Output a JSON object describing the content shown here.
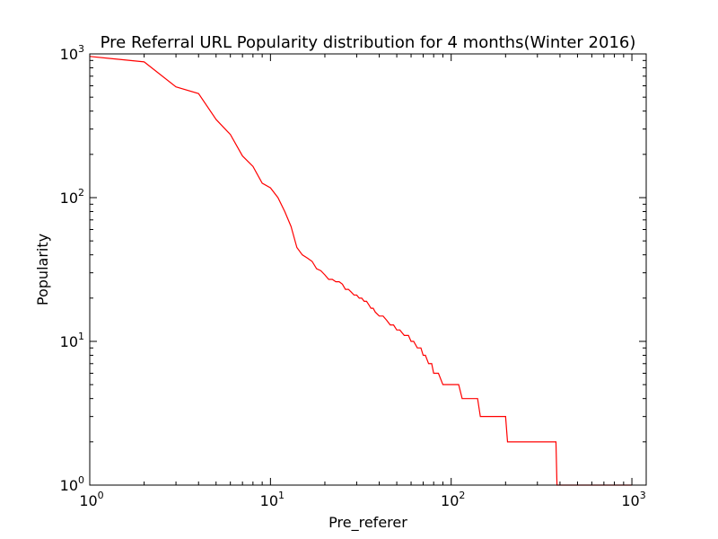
{
  "chart_data": {
    "type": "line",
    "title": "Pre Referral URL Popularity distribution for 4 months(Winter 2016)",
    "xlabel": "Pre_referer",
    "ylabel": "Popularity",
    "xscale": "log",
    "yscale": "log",
    "xlim": [
      1,
      1200
    ],
    "ylim": [
      1,
      1000
    ],
    "grid": false,
    "line_color": "#ff0000",
    "x_ticks": [
      {
        "value": 1,
        "base": "10",
        "exp": "0"
      },
      {
        "value": 10,
        "base": "10",
        "exp": "1"
      },
      {
        "value": 100,
        "base": "10",
        "exp": "2"
      },
      {
        "value": 1000,
        "base": "10",
        "exp": "3"
      }
    ],
    "y_ticks": [
      {
        "value": 1,
        "base": "10",
        "exp": "0"
      },
      {
        "value": 10,
        "base": "10",
        "exp": "1"
      },
      {
        "value": 100,
        "base": "10",
        "exp": "2"
      },
      {
        "value": 1000,
        "base": "10",
        "exp": "3"
      }
    ],
    "series": [
      {
        "x": [
          1,
          2,
          3,
          4,
          5,
          6,
          7,
          8,
          9,
          10,
          11,
          12,
          13,
          14,
          15,
          16,
          17,
          18,
          19,
          20,
          21,
          22,
          23,
          24,
          25,
          26,
          27,
          28,
          29,
          30,
          31,
          32,
          33,
          34,
          35,
          36,
          37,
          38,
          40,
          42,
          44,
          46,
          48,
          50,
          52,
          55,
          58,
          60,
          62,
          65,
          68,
          70,
          72,
          75,
          78,
          80,
          85,
          90,
          95,
          100,
          110,
          115,
          140,
          145,
          200,
          205,
          380,
          385,
          1000
        ],
        "y": [
          960,
          880,
          590,
          530,
          350,
          275,
          195,
          165,
          126,
          117,
          100,
          80,
          63,
          45,
          40,
          38,
          36,
          32,
          31,
          29,
          27,
          27,
          26,
          26,
          25,
          23,
          23,
          22,
          21,
          21,
          20,
          20,
          19,
          19,
          18,
          17,
          17,
          16,
          15,
          15,
          14,
          13,
          13,
          12,
          12,
          11,
          11,
          10,
          10,
          9,
          9,
          8,
          8,
          7,
          7,
          6,
          6,
          5,
          5,
          5,
          5,
          4,
          4,
          3,
          3,
          2,
          2,
          1,
          1
        ]
      }
    ]
  }
}
